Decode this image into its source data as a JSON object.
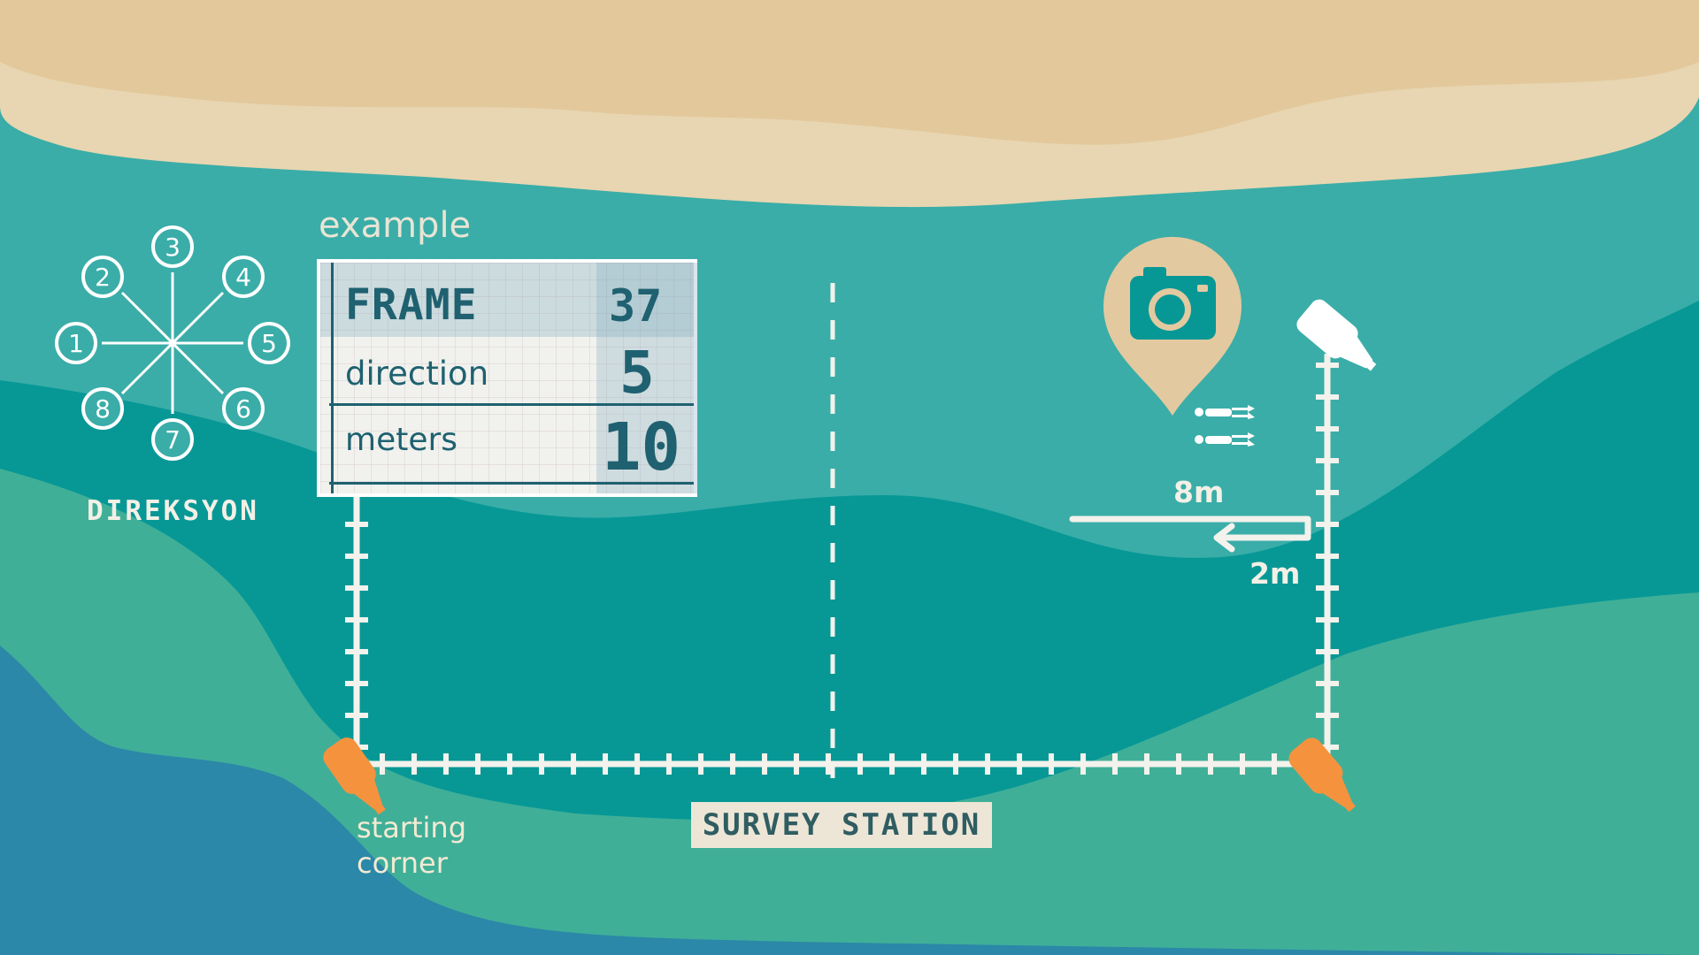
{
  "colors": {
    "sand_dark": "#e3c89c",
    "sand_light": "#e7d6b1",
    "water_light": "#3aada8",
    "water_mid": "#079896",
    "water_green": "#40af98",
    "water_deep": "#2b88a8",
    "rope": "#f3f2ec",
    "buoy_orange": "#f5923e",
    "buoy_white": "#ffffff",
    "pin": "#e3c9a0",
    "text_dark": "#1f6170"
  },
  "compass": {
    "title": "DIREKSYON",
    "directions": [
      "1",
      "2",
      "3",
      "4",
      "5",
      "6",
      "7",
      "8"
    ]
  },
  "example": {
    "label": "example",
    "rows": [
      {
        "key": "FRAME",
        "value": "37"
      },
      {
        "key": "direction",
        "value": "5"
      },
      {
        "key": "meters",
        "value": "10"
      }
    ]
  },
  "swim_path": {
    "length_long": "8m",
    "length_short": "2m"
  },
  "icons": {
    "camera": "camera-icon",
    "location_pin": "location-pin-icon",
    "divers": "diver-icon",
    "starting_buoy": "orange-buoy-icon",
    "corner_buoy": "white-buoy-icon"
  },
  "labels": {
    "starting_corner_line1": "starting",
    "starting_corner_line2": "corner",
    "survey_station": "SURVEY STATION"
  }
}
